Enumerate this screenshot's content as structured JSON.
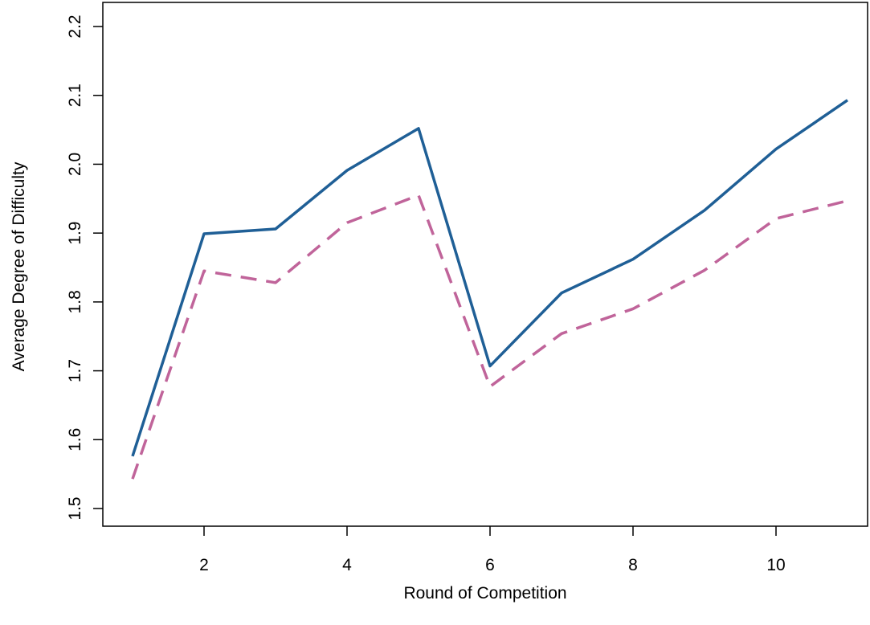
{
  "chart_data": {
    "type": "line",
    "xlabel": "Round of Competition",
    "ylabel": "Average Degree of Difficulty",
    "xlim": [
      1,
      11
    ],
    "ylim": [
      1.5,
      2.2
    ],
    "x_ticks": [
      2,
      4,
      6,
      8,
      10
    ],
    "y_ticks": [
      "1.5",
      "1.6",
      "1.7",
      "1.8",
      "1.9",
      "2.0",
      "2.1",
      "2.2"
    ],
    "grid": false,
    "legend": "none",
    "x": [
      1,
      2,
      3,
      4,
      5,
      6,
      7,
      8,
      9,
      10,
      11
    ],
    "series": [
      {
        "values": [
          1.576,
          1.899,
          1.906,
          1.991,
          2.052,
          1.707,
          1.813,
          1.862,
          1.933,
          2.022,
          2.093
        ],
        "color": "#1f5f96",
        "style": "solid"
      },
      {
        "values": [
          1.543,
          1.845,
          1.828,
          1.915,
          1.955,
          1.677,
          1.754,
          1.79,
          1.846,
          1.921,
          1.947
        ],
        "color": "#c0649a",
        "style": "dashed"
      }
    ]
  }
}
